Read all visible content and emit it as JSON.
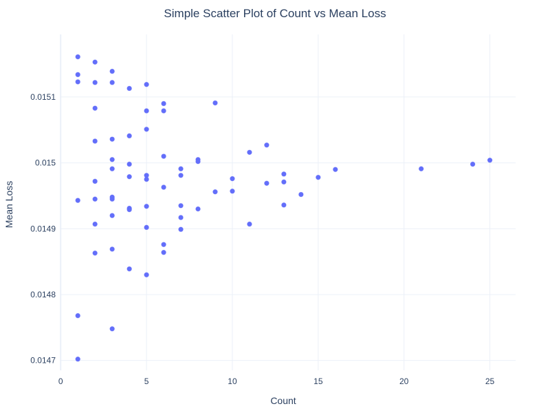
{
  "chart_data": {
    "type": "scatter",
    "title": "Simple Scatter Plot of Count vs Mean Loss",
    "xlabel": "Count",
    "ylabel": "Mean Loss",
    "xlim": [
      -0.05,
      26.5
    ],
    "ylim": [
      0.014685,
      0.015195
    ],
    "x_ticks": [
      0,
      5,
      10,
      15,
      20,
      25
    ],
    "x_tick_labels": [
      "0",
      "5",
      "10",
      "15",
      "20",
      "25"
    ],
    "y_ticks": [
      0.0147,
      0.0148,
      0.0149,
      0.015,
      0.0151
    ],
    "y_tick_labels": [
      "0.0147",
      "0.0148",
      "0.0149",
      "0.015",
      "0.0151"
    ],
    "grid": true,
    "marker_color": "#636efa",
    "points": [
      {
        "x": 1,
        "y": 0.015161
      },
      {
        "x": 1,
        "y": 0.015134
      },
      {
        "x": 1,
        "y": 0.015123
      },
      {
        "x": 1,
        "y": 0.014943
      },
      {
        "x": 1,
        "y": 0.014768
      },
      {
        "x": 1,
        "y": 0.014702
      },
      {
        "x": 2,
        "y": 0.015153
      },
      {
        "x": 2,
        "y": 0.015122
      },
      {
        "x": 2,
        "y": 0.015083
      },
      {
        "x": 2,
        "y": 0.015033
      },
      {
        "x": 2,
        "y": 0.014972
      },
      {
        "x": 2,
        "y": 0.014945
      },
      {
        "x": 2,
        "y": 0.014907
      },
      {
        "x": 2,
        "y": 0.014863
      },
      {
        "x": 3,
        "y": 0.015139
      },
      {
        "x": 3,
        "y": 0.015122
      },
      {
        "x": 3,
        "y": 0.015036
      },
      {
        "x": 3,
        "y": 0.015005
      },
      {
        "x": 3,
        "y": 0.014991
      },
      {
        "x": 3,
        "y": 0.014948
      },
      {
        "x": 3,
        "y": 0.014945
      },
      {
        "x": 3,
        "y": 0.01492
      },
      {
        "x": 3,
        "y": 0.014869
      },
      {
        "x": 3,
        "y": 0.014748
      },
      {
        "x": 4,
        "y": 0.015113
      },
      {
        "x": 4,
        "y": 0.015041
      },
      {
        "x": 4,
        "y": 0.014998
      },
      {
        "x": 4,
        "y": 0.014979
      },
      {
        "x": 4,
        "y": 0.014931
      },
      {
        "x": 4,
        "y": 0.014929
      },
      {
        "x": 4,
        "y": 0.014839
      },
      {
        "x": 5,
        "y": 0.015119
      },
      {
        "x": 5,
        "y": 0.015079
      },
      {
        "x": 5,
        "y": 0.015051
      },
      {
        "x": 5,
        "y": 0.014981
      },
      {
        "x": 5,
        "y": 0.014975
      },
      {
        "x": 5,
        "y": 0.014934
      },
      {
        "x": 5,
        "y": 0.014902
      },
      {
        "x": 5,
        "y": 0.01483
      },
      {
        "x": 6,
        "y": 0.01509
      },
      {
        "x": 6,
        "y": 0.015079
      },
      {
        "x": 6,
        "y": 0.01501
      },
      {
        "x": 6,
        "y": 0.014963
      },
      {
        "x": 6,
        "y": 0.014876
      },
      {
        "x": 6,
        "y": 0.014864
      },
      {
        "x": 7,
        "y": 0.014991
      },
      {
        "x": 7,
        "y": 0.014981
      },
      {
        "x": 7,
        "y": 0.014935
      },
      {
        "x": 7,
        "y": 0.014917
      },
      {
        "x": 7,
        "y": 0.014899
      },
      {
        "x": 8,
        "y": 0.015005
      },
      {
        "x": 8,
        "y": 0.015002
      },
      {
        "x": 8,
        "y": 0.01493
      },
      {
        "x": 9,
        "y": 0.015091
      },
      {
        "x": 9,
        "y": 0.014956
      },
      {
        "x": 10,
        "y": 0.014976
      },
      {
        "x": 10,
        "y": 0.014957
      },
      {
        "x": 11,
        "y": 0.015016
      },
      {
        "x": 11,
        "y": 0.014907
      },
      {
        "x": 12,
        "y": 0.015027
      },
      {
        "x": 12,
        "y": 0.014969
      },
      {
        "x": 13,
        "y": 0.014983
      },
      {
        "x": 13,
        "y": 0.014971
      },
      {
        "x": 13,
        "y": 0.014936
      },
      {
        "x": 14,
        "y": 0.014952
      },
      {
        "x": 15,
        "y": 0.014978
      },
      {
        "x": 16,
        "y": 0.01499
      },
      {
        "x": 21,
        "y": 0.014991
      },
      {
        "x": 24,
        "y": 0.014998
      },
      {
        "x": 25,
        "y": 0.015004
      }
    ]
  }
}
